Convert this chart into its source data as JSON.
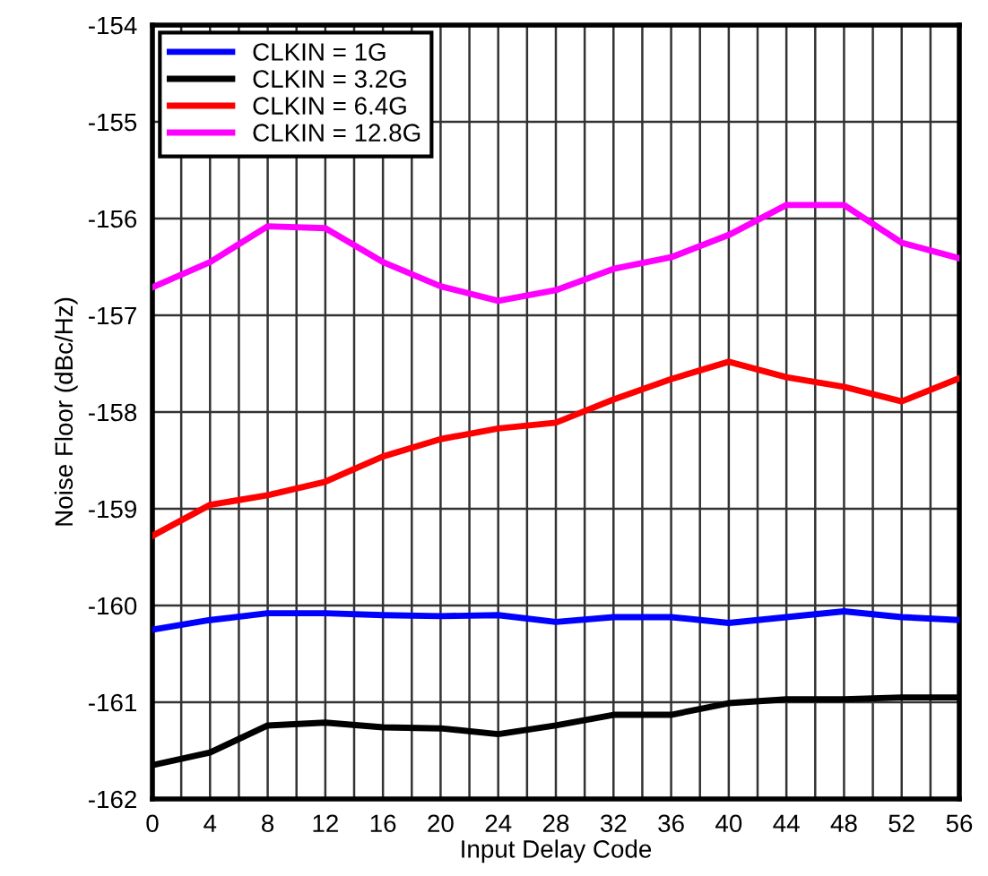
{
  "chart_data": {
    "type": "line",
    "xlabel": "Input Delay Code",
    "ylabel": "Noise Floor (dBc/Hz)",
    "x": [
      0,
      4,
      8,
      12,
      16,
      20,
      24,
      28,
      32,
      36,
      40,
      44,
      48,
      52,
      56
    ],
    "series": [
      {
        "name": "CLKIN = 1G",
        "color": "#0000ff",
        "values": [
          -160.25,
          -160.15,
          -160.08,
          -160.08,
          -160.1,
          -160.11,
          -160.1,
          -160.17,
          -160.12,
          -160.12,
          -160.18,
          -160.12,
          -160.06,
          -160.12,
          -160.15
        ]
      },
      {
        "name": "CLKIN = 3.2G",
        "color": "#000000",
        "values": [
          -161.65,
          -161.52,
          -161.24,
          -161.21,
          -161.26,
          -161.27,
          -161.33,
          -161.24,
          -161.13,
          -161.13,
          -161.01,
          -160.97,
          -160.97,
          -160.95,
          -160.95
        ]
      },
      {
        "name": "CLKIN = 6.4G",
        "color": "#ff0000",
        "values": [
          -159.28,
          -158.96,
          -158.86,
          -158.72,
          -158.46,
          -158.28,
          -158.17,
          -158.11,
          -157.87,
          -157.66,
          -157.48,
          -157.64,
          -157.74,
          -157.89,
          -157.65
        ]
      },
      {
        "name": "CLKIN = 12.8G",
        "color": "#ff00ff",
        "values": [
          -156.71,
          -156.45,
          -156.08,
          -156.1,
          -156.45,
          -156.7,
          -156.85,
          -156.74,
          -156.52,
          -156.4,
          -156.17,
          -155.86,
          -155.86,
          -156.25,
          -156.41
        ]
      }
    ],
    "xlim": [
      0,
      56
    ],
    "ylim": [
      -162,
      -154
    ],
    "xticks": [
      0,
      {
        "value": 2,
        "label": null
      },
      4,
      {
        "value": 6,
        "label": null
      },
      8,
      {
        "value": 10,
        "label": null
      },
      12,
      {
        "value": 14,
        "label": null
      },
      16,
      {
        "value": 18,
        "label": null
      },
      20,
      {
        "value": 22,
        "label": null
      },
      24,
      {
        "value": 26,
        "label": null
      },
      28,
      {
        "value": 30,
        "label": null
      },
      32,
      {
        "value": 34,
        "label": null
      },
      36,
      {
        "value": 38,
        "label": null
      },
      40,
      {
        "value": 42,
        "label": null
      },
      44,
      {
        "value": 46,
        "label": null
      },
      48,
      {
        "value": 50,
        "label": null
      },
      52,
      {
        "value": 54,
        "label": null
      },
      56
    ],
    "yticks": [
      -162,
      -161,
      -160,
      -159,
      -158,
      -157,
      -156,
      -155,
      -154
    ],
    "grid": true,
    "legend": "top left",
    "marker": "none",
    "line_style": "solid"
  }
}
